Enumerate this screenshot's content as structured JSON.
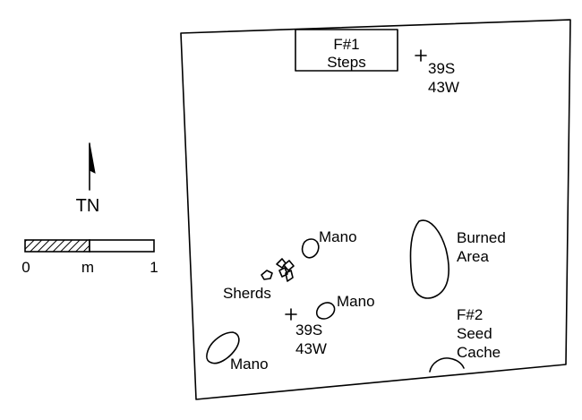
{
  "north_arrow": {
    "label": "TN"
  },
  "scale_bar": {
    "labels": [
      "0",
      "m",
      "1"
    ],
    "length_m": 1,
    "filled_fraction": 0.5
  },
  "features": [
    {
      "id": "F#1",
      "name": "Steps",
      "lines": [
        "F#1",
        "Steps"
      ]
    },
    {
      "id": "F#2",
      "name": "Seed Cache",
      "lines": [
        "F#2",
        "Seed",
        "Cache"
      ]
    }
  ],
  "datums": [
    {
      "lines": [
        "39S",
        "43W"
      ]
    },
    {
      "lines": [
        "39S",
        "43W"
      ]
    }
  ],
  "artifacts": {
    "burned_area": [
      "Burned",
      "Area"
    ],
    "mano_labels": [
      "Mano",
      "Mano",
      "Mano"
    ],
    "sherds_label": "Sherds"
  }
}
